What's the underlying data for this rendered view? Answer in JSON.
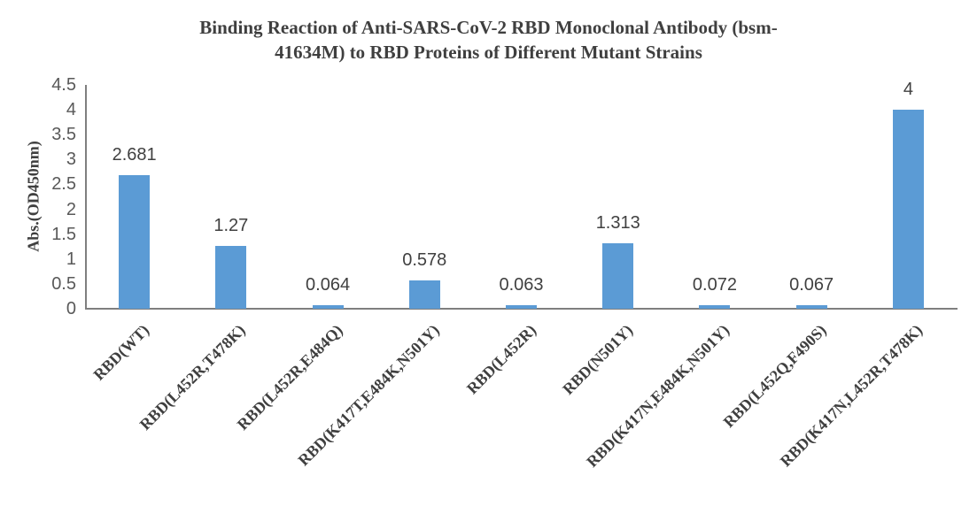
{
  "chart_data": {
    "type": "bar",
    "title": "Binding Reaction of Anti-SARS-CoV-2 RBD Monoclonal Antibody (bsm-41634M) to RBD Proteins of Different Mutant Strains",
    "title_lines": [
      "Binding Reaction of Anti-SARS-CoV-2 RBD Monoclonal Antibody (bsm-",
      "41634M) to RBD Proteins of Different Mutant Strains"
    ],
    "xlabel": "",
    "ylabel": "Abs.(OD450nm)",
    "ylim": [
      0,
      4.5
    ],
    "y_ticks": [
      "0",
      "0.5",
      "1",
      "1.5",
      "2",
      "2.5",
      "3",
      "3.5",
      "4",
      "4.5"
    ],
    "categories": [
      "RBD(WT)",
      "RBD(L452R,T478K)",
      "RBD(L452R,E484Q)",
      "RBD(K417T,E484K,N501Y)",
      "RBD(L452R)",
      "RBD(N501Y)",
      "RBD(K417N,E484K,N501Y)",
      "RBD(L452Q,F490S)",
      "RBD(K417N,L452R,T478K)"
    ],
    "values": [
      2.681,
      1.27,
      0.064,
      0.578,
      0.063,
      1.313,
      0.072,
      0.067,
      4
    ],
    "data_labels": [
      "2.681",
      "1.27",
      "0.064",
      "0.578",
      "0.063",
      "1.313",
      "0.072",
      "0.067",
      "4"
    ],
    "bar_color": "#5B9BD5",
    "axis_color": "#7F7F7F",
    "grid": false,
    "legend": false
  }
}
